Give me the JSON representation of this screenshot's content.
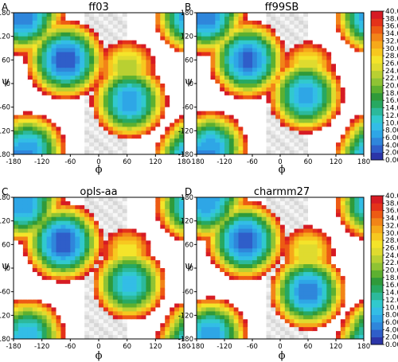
{
  "chart_data": [
    {
      "type": "heatmap",
      "panel_letter": "A",
      "title": "ff03",
      "xlabel": "ϕ",
      "ylabel": "ψ",
      "xlim": [
        -180,
        180
      ],
      "ylim": [
        -180,
        180
      ],
      "x_ticks": [
        "-180",
        "-120",
        "-60",
        "0",
        "60",
        "120",
        "180"
      ],
      "y_ticks": [
        "-180",
        "-120",
        "-60",
        "0",
        "60",
        "120",
        "180"
      ],
      "minima": [
        {
          "x": -70,
          "y": 60,
          "value": 2
        },
        {
          "x": -160,
          "y": 170,
          "value": 4
        },
        {
          "x": 65,
          "y": -45,
          "value": 6
        },
        {
          "x": -150,
          "y": -170,
          "value": 6
        },
        {
          "x": 60,
          "y": 40,
          "value": 22
        }
      ],
      "high_energy_region": {
        "phi": [
          -30,
          60
        ],
        "psi": [
          -180,
          180
        ],
        "value": 40
      }
    },
    {
      "type": "heatmap",
      "panel_letter": "B",
      "title": "ff99SB",
      "xlabel": "ϕ",
      "ylabel": "ψ",
      "xlim": [
        -180,
        180
      ],
      "ylim": [
        -180,
        180
      ],
      "x_ticks": [
        "-180",
        "-120",
        "-60",
        "0",
        "60",
        "120",
        "180"
      ],
      "y_ticks": [
        "-180",
        "-120",
        "-60",
        "0",
        "60",
        "120",
        "180"
      ],
      "minima": [
        {
          "x": -70,
          "y": 60,
          "value": 3
        },
        {
          "x": -160,
          "y": 170,
          "value": 4
        },
        {
          "x": 55,
          "y": -30,
          "value": 6
        },
        {
          "x": -150,
          "y": -165,
          "value": 6
        },
        {
          "x": 60,
          "y": 40,
          "value": 24
        }
      ],
      "high_energy_region": {
        "phi": [
          -30,
          60
        ],
        "psi": [
          -180,
          180
        ],
        "value": 40
      }
    },
    {
      "type": "heatmap",
      "panel_letter": "C",
      "title": "opls-aa",
      "xlabel": "ϕ",
      "ylabel": "ψ",
      "xlim": [
        -180,
        180
      ],
      "ylim": [
        -180,
        180
      ],
      "x_ticks": [
        "-180",
        "-120",
        "-60",
        "0",
        "60",
        "120",
        "180"
      ],
      "y_ticks": [
        "-180",
        "-120",
        "-60",
        "0",
        "60",
        "120",
        "180"
      ],
      "minima": [
        {
          "x": -75,
          "y": 65,
          "value": 2
        },
        {
          "x": -160,
          "y": 160,
          "value": 6
        },
        {
          "x": 65,
          "y": -40,
          "value": 8
        },
        {
          "x": -150,
          "y": -170,
          "value": 8
        },
        {
          "x": 60,
          "y": 40,
          "value": 26
        }
      ],
      "high_energy_region": {
        "phi": [
          -30,
          60
        ],
        "psi": [
          -180,
          180
        ],
        "value": 40
      }
    },
    {
      "type": "heatmap",
      "panel_letter": "D",
      "title": "charmm27",
      "xlabel": "ϕ",
      "ylabel": "ψ",
      "xlim": [
        -180,
        180
      ],
      "ylim": [
        -180,
        180
      ],
      "x_ticks": [
        "-180",
        "-120",
        "-60",
        "0",
        "60",
        "120",
        "180"
      ],
      "y_ticks": [
        "-180",
        "-120",
        "-60",
        "0",
        "60",
        "120",
        "180"
      ],
      "minima": [
        {
          "x": -75,
          "y": 70,
          "value": 2
        },
        {
          "x": -160,
          "y": 165,
          "value": 6
        },
        {
          "x": 60,
          "y": -60,
          "value": 4
        },
        {
          "x": -150,
          "y": -170,
          "value": 6
        },
        {
          "x": 60,
          "y": 40,
          "value": 24
        }
      ],
      "high_energy_region": {
        "phi": [
          -30,
          60
        ],
        "psi": [
          -180,
          180
        ],
        "value": 40
      }
    }
  ],
  "colorbar": {
    "min": 0,
    "max": 40,
    "tick_labels": [
      "0.00",
      "2.00",
      "4.00",
      "6.00",
      "8.00",
      "10.0",
      "12.0",
      "14.0",
      "16.0",
      "18.0",
      "20.0",
      "22.0",
      "24.0",
      "26.0",
      "28.0",
      "30.0",
      "32.0",
      "34.0",
      "36.0",
      "38.0",
      "40.0"
    ],
    "colors": [
      "#2b35a8",
      "#2f5ec9",
      "#2f86db",
      "#2ea6e6",
      "#33bde6",
      "#31c9cd",
      "#2cb99b",
      "#27a861",
      "#2f9a3a",
      "#5db030",
      "#8fc334",
      "#b9d032",
      "#dfdb2f",
      "#f4e42a",
      "#f7c81f",
      "#f6a91a",
      "#f28418",
      "#ed5b14",
      "#e4321a",
      "#d61b24"
    ]
  }
}
